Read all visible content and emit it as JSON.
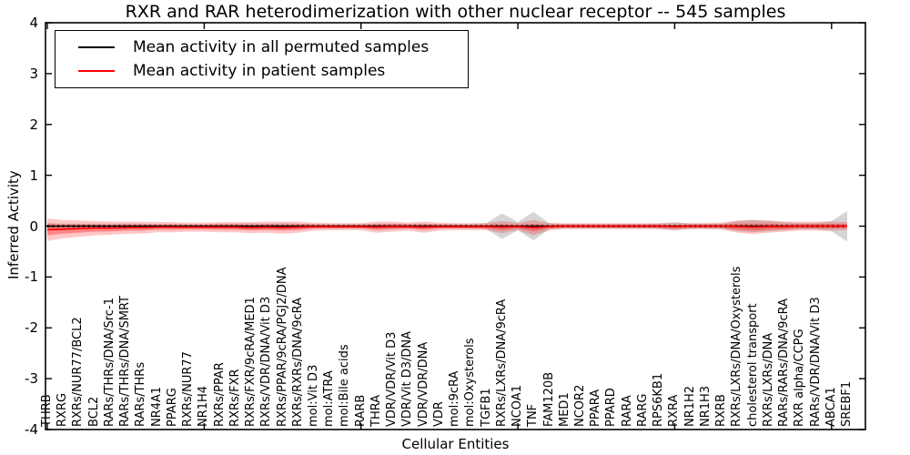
{
  "figure": {
    "title": "RXR and RAR heterodimerization with other nuclear receptor -- 545 samples",
    "xlabel": "Cellular Entities",
    "ylabel": "Inferred Activity"
  },
  "legend": {
    "items": [
      {
        "label": "Mean activity in all permuted samples",
        "color": "#000000"
      },
      {
        "label": "Mean activity in patient samples",
        "color": "#ff0000"
      }
    ]
  },
  "chart_data": {
    "type": "line",
    "title": "RXR and RAR heterodimerization with other nuclear receptor -- 545 samples",
    "xlabel": "Cellular Entities",
    "ylabel": "Inferred Activity",
    "ylim": [
      -4,
      4
    ],
    "yticks": [
      4,
      3,
      2,
      1,
      0,
      -1,
      -2,
      -3,
      -4
    ],
    "xtick_every": 10,
    "grid": false,
    "legend_position": "upper left",
    "band_colors": {
      "permuted": "#888888",
      "patient": "#ff0000"
    },
    "categories": [
      "THRB",
      "RXRG",
      "RXRs/NUR77/BCL2",
      "BCL2",
      "RARs/THRs/DNA/Src-1",
      "RARs/THRs/DNA/SMRT",
      "RARs/THRs",
      "NR4A1",
      "PPARG",
      "RXRs/NUR77",
      "NR1H4",
      "RXRs/PPAR",
      "RXRs/FXR",
      "RXRs/FXR/9cRA/MED1",
      "RXRs/VDR/DNA/Vit D3",
      "RXRs/PPAR/9cRA/PGJ2/DNA",
      "RXRs/RXRs/DNA/9cRA",
      "mol:Vit D3",
      "mol:ATRA",
      "mol:Bile acids",
      "RARB",
      "THRA",
      "VDR/VDR/Vit D3",
      "VDR/Vit D3/DNA",
      "VDR/VDR/DNA",
      "VDR",
      "mol:9cRA",
      "mol:Oxysterols",
      "TGFB1",
      "RXRs/LXRs/DNA/9cRA",
      "NCOA1",
      "TNF",
      "FAM120B",
      "MED1",
      "NCOR2",
      "PPARA",
      "PPARD",
      "RARA",
      "RARG",
      "RPS6KB1",
      "RXRA",
      "NR1H2",
      "NR1H3",
      "RXRB",
      "RXRs/LXRs/DNA/Oxysterols",
      "cholesterol transport",
      "RXRs/LXRs/DNA",
      "RARs/RARs/DNA/9cRA",
      "RXR alpha/CCPG",
      "RARs/VDR/DNA/Vit D3",
      "ABCA1",
      "SREBF1"
    ],
    "series": [
      {
        "name": "Mean activity in all permuted samples",
        "color": "#000000",
        "mean": [
          0,
          0,
          0,
          0,
          0,
          0,
          0,
          0,
          0,
          0,
          0,
          0,
          0,
          0,
          0,
          0,
          0,
          0,
          0,
          0,
          0,
          0,
          0,
          0,
          0,
          0,
          0,
          0,
          0,
          0,
          0,
          0,
          0,
          0,
          0,
          0,
          0,
          0,
          0,
          0,
          0,
          0,
          0,
          0,
          0,
          0,
          0,
          0,
          0,
          0,
          0,
          0
        ],
        "std": [
          0.06,
          0.05,
          0.05,
          0.05,
          0.05,
          0.05,
          0.05,
          0.04,
          0.04,
          0.04,
          0.04,
          0.05,
          0.05,
          0.06,
          0.05,
          0.06,
          0.05,
          0.04,
          0.04,
          0.04,
          0.04,
          0.05,
          0.05,
          0.05,
          0.05,
          0.04,
          0.04,
          0.04,
          0.06,
          0.25,
          0.08,
          0.28,
          0.06,
          0.04,
          0.04,
          0.04,
          0.04,
          0.04,
          0.04,
          0.05,
          0.08,
          0.05,
          0.05,
          0.05,
          0.1,
          0.12,
          0.1,
          0.08,
          0.06,
          0.06,
          0.1,
          0.3
        ]
      },
      {
        "name": "Mean activity in patient samples",
        "color": "#ff0000",
        "mean": [
          -0.07,
          -0.06,
          -0.05,
          -0.04,
          -0.04,
          -0.03,
          -0.03,
          -0.02,
          -0.02,
          -0.02,
          -0.02,
          -0.02,
          -0.02,
          -0.03,
          -0.02,
          -0.03,
          -0.02,
          -0.01,
          -0.01,
          -0.01,
          -0.01,
          -0.02,
          -0.01,
          -0.01,
          -0.02,
          -0.01,
          -0.01,
          -0.01,
          -0.01,
          -0.02,
          -0.01,
          -0.03,
          -0.01,
          0,
          0,
          0,
          0,
          0,
          0,
          0,
          -0.01,
          0,
          0,
          0,
          -0.01,
          -0.02,
          -0.01,
          -0.01,
          0,
          0,
          0,
          0
        ],
        "std": [
          0.22,
          0.18,
          0.16,
          0.14,
          0.13,
          0.12,
          0.12,
          0.1,
          0.1,
          0.09,
          0.09,
          0.1,
          0.1,
          0.11,
          0.11,
          0.12,
          0.11,
          0.08,
          0.07,
          0.07,
          0.07,
          0.11,
          0.1,
          0.08,
          0.11,
          0.08,
          0.07,
          0.07,
          0.07,
          0.12,
          0.07,
          0.15,
          0.07,
          0.06,
          0.06,
          0.06,
          0.06,
          0.06,
          0.06,
          0.06,
          0.07,
          0.06,
          0.06,
          0.07,
          0.12,
          0.14,
          0.12,
          0.1,
          0.09,
          0.09,
          0.09,
          0.08
        ]
      }
    ]
  }
}
